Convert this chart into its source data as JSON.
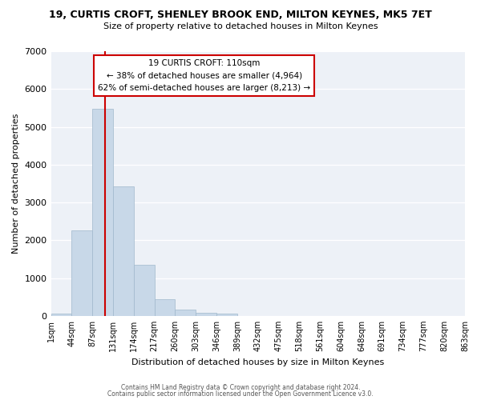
{
  "title": "19, CURTIS CROFT, SHENLEY BROOK END, MILTON KEYNES, MK5 7ET",
  "subtitle": "Size of property relative to detached houses in Milton Keynes",
  "xlabel": "Distribution of detached houses by size in Milton Keynes",
  "ylabel": "Number of detached properties",
  "bar_color": "#c8d8e8",
  "bar_edge_color": "#a0b8cc",
  "bin_labels": [
    "1sqm",
    "44sqm",
    "87sqm",
    "131sqm",
    "174sqm",
    "217sqm",
    "260sqm",
    "303sqm",
    "346sqm",
    "389sqm",
    "432sqm",
    "475sqm",
    "518sqm",
    "561sqm",
    "604sqm",
    "648sqm",
    "691sqm",
    "734sqm",
    "777sqm",
    "820sqm",
    "863sqm"
  ],
  "bar_heights": [
    50,
    2270,
    5480,
    3420,
    1340,
    440,
    160,
    80,
    50,
    0,
    0,
    0,
    0,
    0,
    0,
    0,
    0,
    0,
    0,
    0
  ],
  "ylim": [
    0,
    7000
  ],
  "yticks": [
    0,
    1000,
    2000,
    3000,
    4000,
    5000,
    6000,
    7000
  ],
  "vline_x": 2.6,
  "vline_color": "#cc0000",
  "annotation_title": "19 CURTIS CROFT: 110sqm",
  "annotation_line1": "← 38% of detached houses are smaller (4,964)",
  "annotation_line2": "62% of semi-detached houses are larger (8,213) →",
  "annotation_box_color": "#ffffff",
  "annotation_box_edge": "#cc0000",
  "footer1": "Contains HM Land Registry data © Crown copyright and database right 2024.",
  "footer2": "Contains public sector information licensed under the Open Government Licence v3.0.",
  "background_color": "#edf1f7"
}
